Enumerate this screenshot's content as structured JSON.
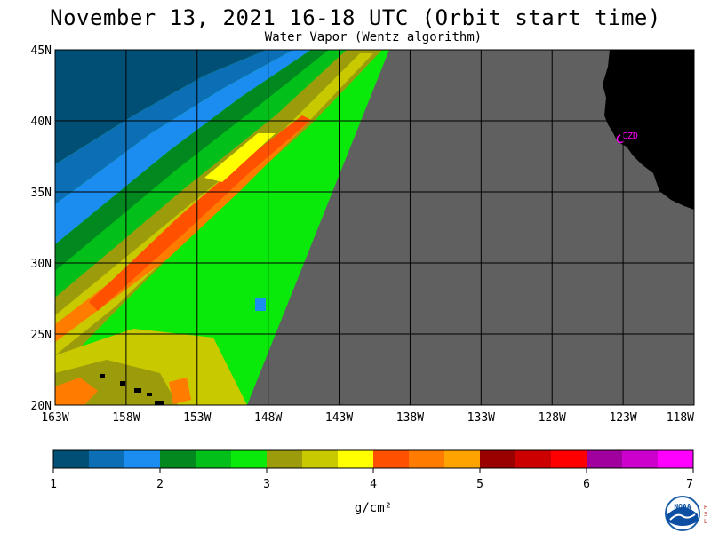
{
  "title": "November 13, 2021  16-18 UTC  (Orbit start time)",
  "subtitle": "Water Vapor (Wentz algorithm)",
  "map": {
    "lat_labels": [
      "45N",
      "40N",
      "35N",
      "30N",
      "25N",
      "20N"
    ],
    "lon_labels": [
      "163W",
      "158W",
      "153W",
      "148W",
      "143W",
      "138W",
      "133W",
      "128W",
      "123W",
      "118W"
    ],
    "lat_range": [
      20,
      45
    ],
    "lon_range": [
      -163,
      -118
    ],
    "station_label": "CZD",
    "colors": {
      "no_data": "#606060",
      "land": "#000000",
      "station": "#ff00ff",
      "grid": "#000000"
    }
  },
  "colorbar": {
    "tick_labels": [
      "1",
      "2",
      "3",
      "4",
      "5",
      "6",
      "7"
    ],
    "unit": "g/cm²",
    "range": [
      1,
      7
    ],
    "colors": [
      "#024f76",
      "#0c6fb5",
      "#1b8cf0",
      "#01891f",
      "#02bf1a",
      "#0aea0a",
      "#9b9b0c",
      "#c9c900",
      "#ffff00",
      "#ff5100",
      "#ff7c00",
      "#ffa300",
      "#990000",
      "#cc0000",
      "#ff0000",
      "#a0009e",
      "#cc00cc",
      "#ff00ff"
    ]
  },
  "logo": {
    "name": "NOAA",
    "side_text": "PSL"
  }
}
